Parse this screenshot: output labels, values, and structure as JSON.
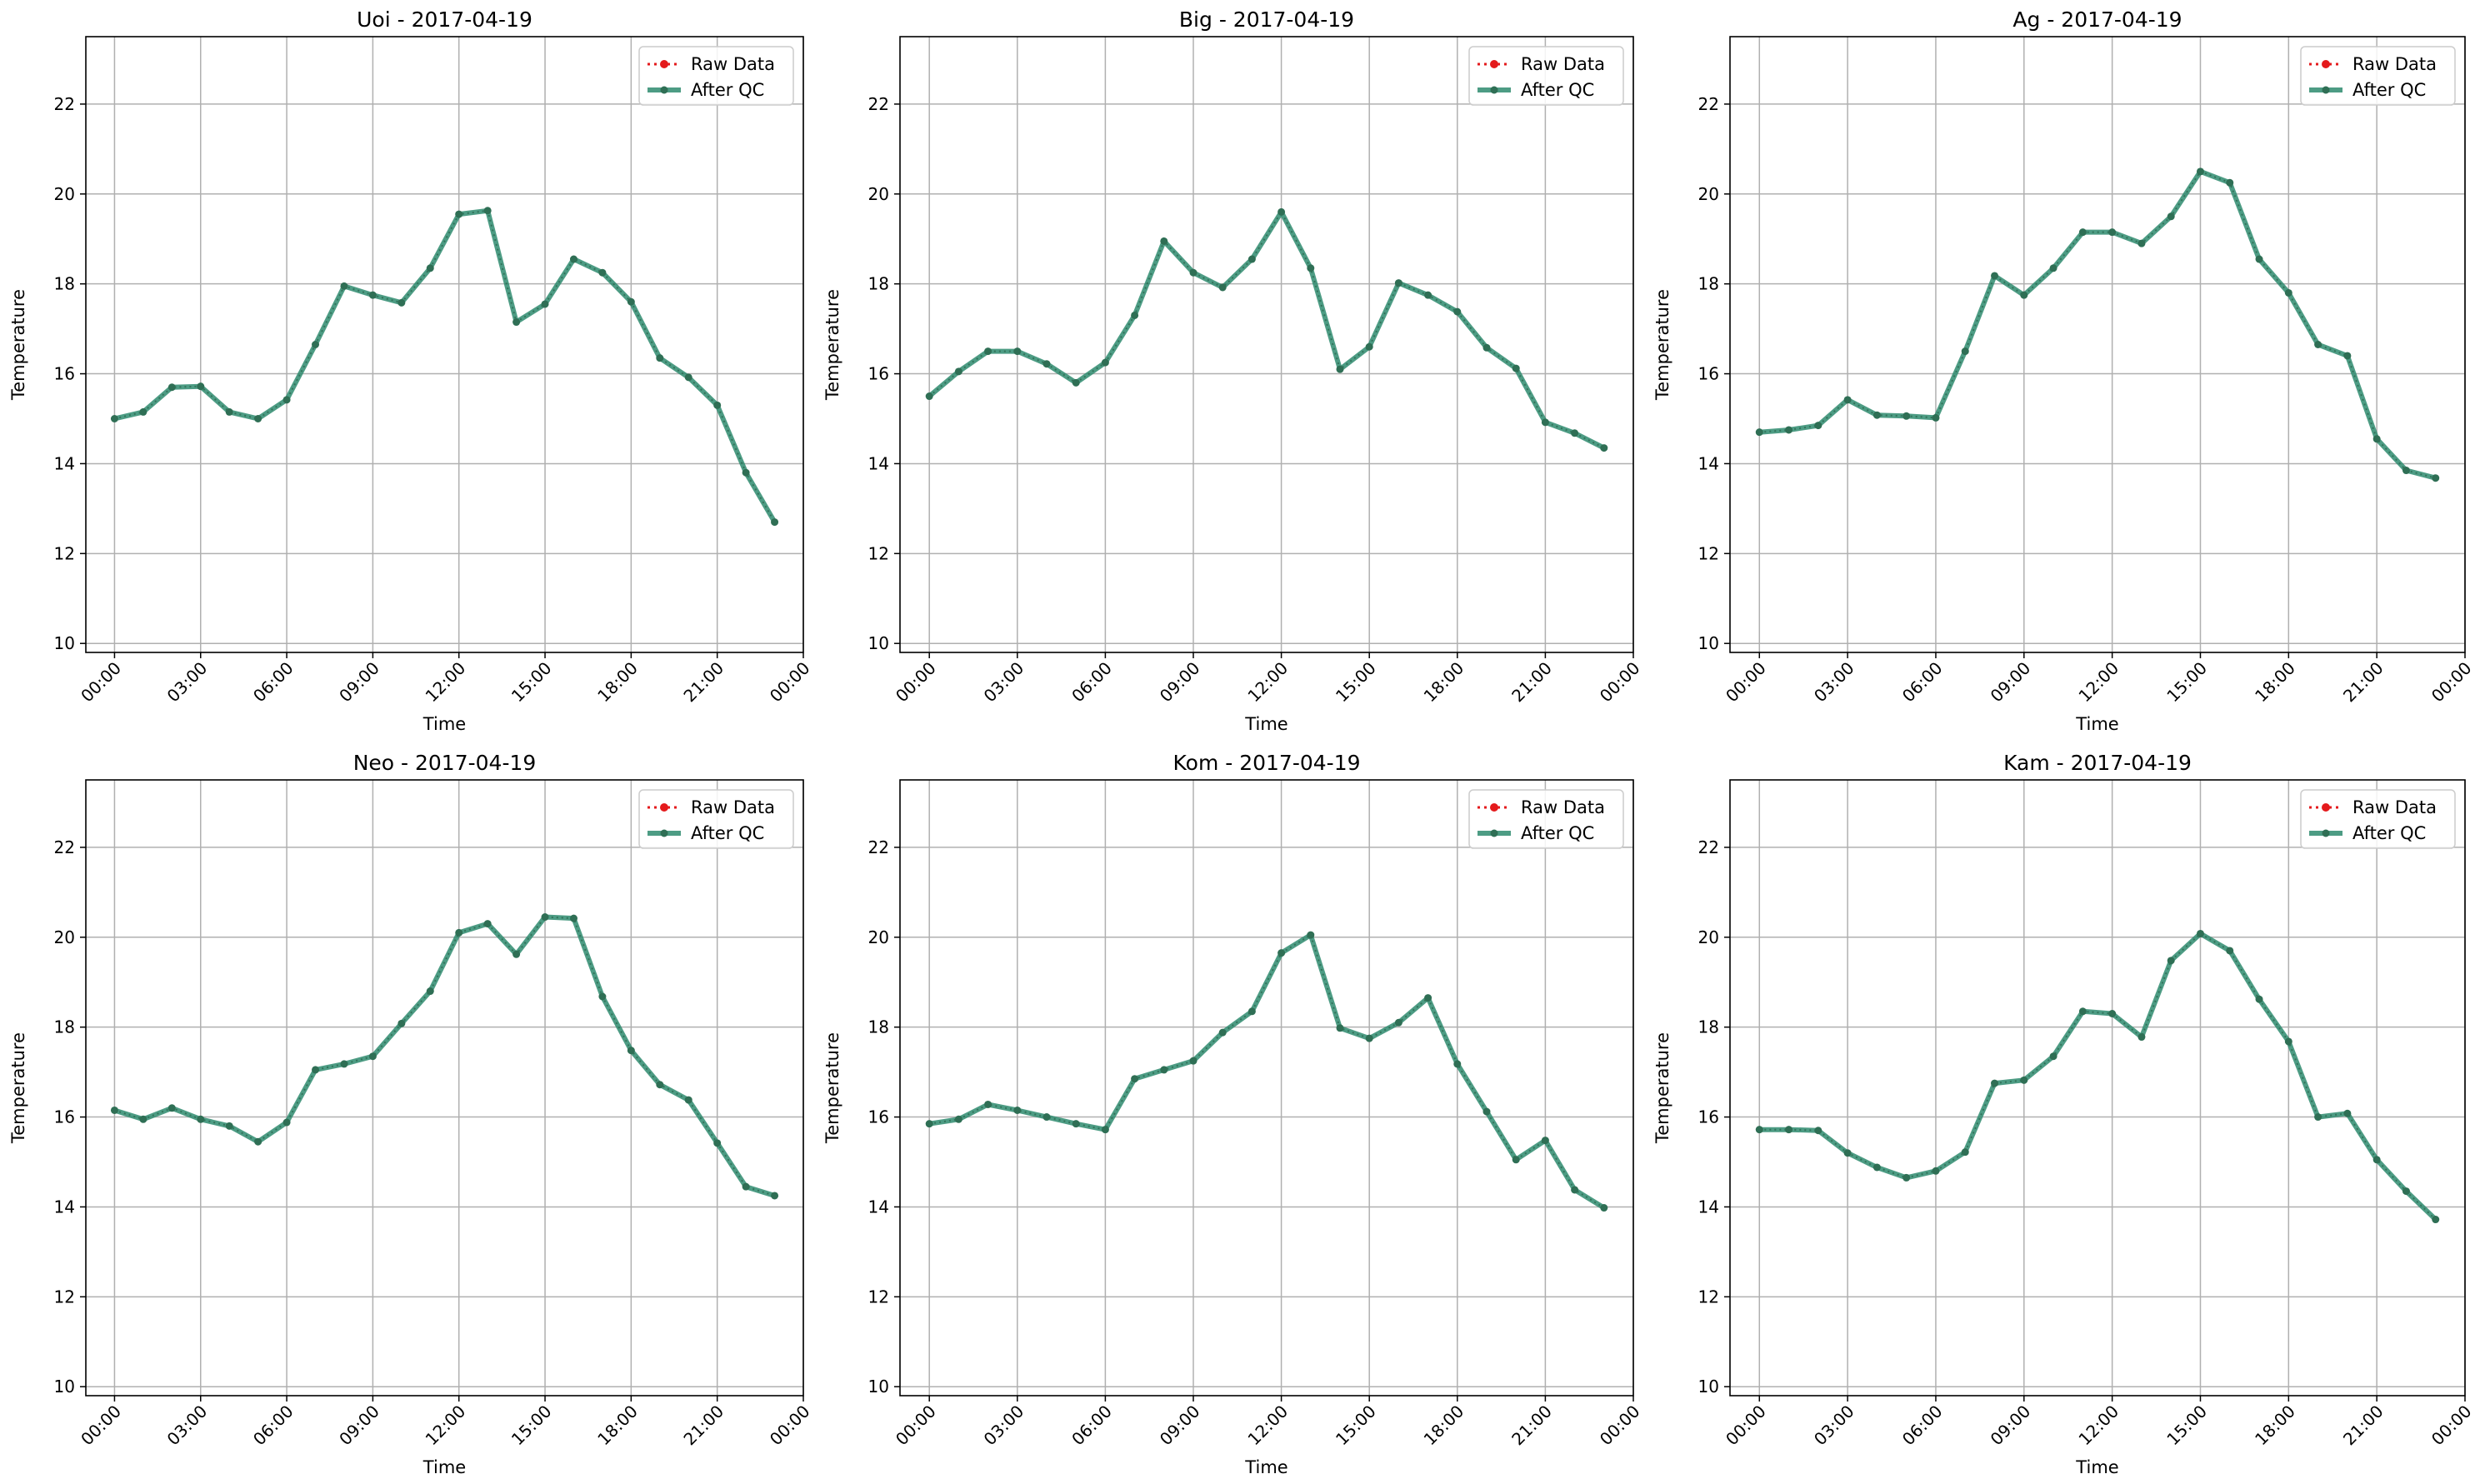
{
  "figure": {
    "legend_placement": "upper-right",
    "grid": true,
    "colors": {
      "raw": "#e41a1c",
      "qc": "#2e8b6e",
      "qc_marker": "#2f6f55",
      "grid": "#b0b0b0"
    }
  },
  "chart_data": [
    {
      "type": "line",
      "title": "Uoi - 2017-04-19",
      "xlabel": "Time",
      "ylabel": "Temperature",
      "ylim": [
        9.8,
        23.5
      ],
      "xlim": [
        -1.0,
        24.0
      ],
      "yticks": [
        10,
        12,
        14,
        16,
        18,
        20,
        22
      ],
      "xticks": [
        "00:00",
        "03:00",
        "06:00",
        "09:00",
        "12:00",
        "15:00",
        "18:00",
        "21:00",
        "00:00"
      ],
      "x_hours": [
        0,
        1,
        2,
        3,
        4,
        5,
        6,
        7,
        8,
        9,
        10,
        11,
        12,
        13,
        14,
        15,
        16,
        17,
        18,
        19,
        20,
        21,
        22,
        23
      ],
      "series": [
        {
          "name": "Raw Data",
          "style": "dotted",
          "values": [
            15.0,
            15.15,
            15.7,
            15.72,
            15.15,
            15.0,
            15.42,
            16.65,
            17.95,
            17.75,
            17.58,
            18.35,
            19.55,
            19.63,
            17.15,
            17.55,
            18.55,
            18.25,
            17.6,
            16.35,
            15.92,
            15.3,
            13.8,
            12.7
          ]
        },
        {
          "name": "After QC",
          "style": "solid",
          "values": [
            15.0,
            15.15,
            15.7,
            15.72,
            15.15,
            15.0,
            15.42,
            16.65,
            17.95,
            17.75,
            17.58,
            18.35,
            19.55,
            19.63,
            17.15,
            17.55,
            18.55,
            18.25,
            17.6,
            16.35,
            15.92,
            15.3,
            13.8,
            12.7
          ]
        }
      ]
    },
    {
      "type": "line",
      "title": "Big - 2017-04-19",
      "xlabel": "Time",
      "ylabel": "Temperature",
      "ylim": [
        9.8,
        23.5
      ],
      "xlim": [
        -1.0,
        24.0
      ],
      "yticks": [
        10,
        12,
        14,
        16,
        18,
        20,
        22
      ],
      "xticks": [
        "00:00",
        "03:00",
        "06:00",
        "09:00",
        "12:00",
        "15:00",
        "18:00",
        "21:00",
        "00:00"
      ],
      "x_hours": [
        0,
        1,
        2,
        3,
        4,
        5,
        6,
        7,
        8,
        9,
        10,
        11,
        12,
        13,
        14,
        15,
        16,
        17,
        18,
        19,
        20,
        21,
        22,
        23
      ],
      "series": [
        {
          "name": "Raw Data",
          "style": "dotted",
          "values": [
            15.5,
            16.05,
            16.5,
            16.5,
            16.22,
            15.8,
            16.25,
            17.3,
            18.95,
            18.25,
            17.92,
            18.55,
            19.6,
            18.35,
            16.1,
            16.6,
            18.02,
            17.75,
            17.38,
            16.58,
            16.12,
            14.92,
            14.68,
            14.35
          ]
        },
        {
          "name": "After QC",
          "style": "solid",
          "values": [
            15.5,
            16.05,
            16.5,
            16.5,
            16.22,
            15.8,
            16.25,
            17.3,
            18.95,
            18.25,
            17.92,
            18.55,
            19.6,
            18.35,
            16.1,
            16.6,
            18.02,
            17.75,
            17.38,
            16.58,
            16.12,
            14.92,
            14.68,
            14.35
          ]
        }
      ]
    },
    {
      "type": "line",
      "title": "Ag - 2017-04-19",
      "xlabel": "Time",
      "ylabel": "Temperature",
      "ylim": [
        9.8,
        23.5
      ],
      "xlim": [
        -1.0,
        24.0
      ],
      "yticks": [
        10,
        12,
        14,
        16,
        18,
        20,
        22
      ],
      "xticks": [
        "00:00",
        "03:00",
        "06:00",
        "09:00",
        "12:00",
        "15:00",
        "18:00",
        "21:00",
        "00:00"
      ],
      "x_hours": [
        0,
        1,
        2,
        3,
        4,
        5,
        6,
        7,
        8,
        9,
        10,
        11,
        12,
        13,
        14,
        15,
        16,
        17,
        18,
        19,
        20,
        21,
        22,
        23
      ],
      "series": [
        {
          "name": "Raw Data",
          "style": "dotted",
          "values": [
            14.7,
            14.75,
            14.85,
            15.42,
            15.08,
            15.06,
            15.02,
            16.5,
            18.18,
            17.75,
            18.35,
            19.15,
            19.15,
            18.9,
            19.5,
            20.5,
            20.25,
            18.55,
            17.8,
            16.65,
            16.4,
            14.55,
            13.85,
            13.68
          ]
        },
        {
          "name": "After QC",
          "style": "solid",
          "values": [
            14.7,
            14.75,
            14.85,
            15.42,
            15.08,
            15.06,
            15.02,
            16.5,
            18.18,
            17.75,
            18.35,
            19.15,
            19.15,
            18.9,
            19.5,
            20.5,
            20.25,
            18.55,
            17.8,
            16.65,
            16.4,
            14.55,
            13.85,
            13.68
          ]
        }
      ]
    },
    {
      "type": "line",
      "title": "Neo - 2017-04-19",
      "xlabel": "Time",
      "ylabel": "Temperature",
      "ylim": [
        9.8,
        23.5
      ],
      "xlim": [
        -1.0,
        24.0
      ],
      "yticks": [
        10,
        12,
        14,
        16,
        18,
        20,
        22
      ],
      "xticks": [
        "00:00",
        "03:00",
        "06:00",
        "09:00",
        "12:00",
        "15:00",
        "18:00",
        "21:00",
        "00:00"
      ],
      "x_hours": [
        0,
        1,
        2,
        3,
        4,
        5,
        6,
        7,
        8,
        9,
        10,
        11,
        12,
        13,
        14,
        15,
        16,
        17,
        18,
        19,
        20,
        21,
        22,
        23
      ],
      "series": [
        {
          "name": "Raw Data",
          "style": "dotted",
          "values": [
            16.15,
            15.95,
            16.2,
            15.95,
            15.8,
            15.45,
            15.88,
            17.05,
            17.18,
            17.35,
            18.08,
            18.8,
            20.1,
            20.3,
            19.62,
            20.45,
            20.42,
            18.68,
            17.48,
            16.72,
            16.38,
            15.42,
            14.45,
            14.25
          ]
        },
        {
          "name": "After QC",
          "style": "solid",
          "values": [
            16.15,
            15.95,
            16.2,
            15.95,
            15.8,
            15.45,
            15.88,
            17.05,
            17.18,
            17.35,
            18.08,
            18.8,
            20.1,
            20.3,
            19.62,
            20.45,
            20.42,
            18.68,
            17.48,
            16.72,
            16.38,
            15.42,
            14.45,
            14.25
          ]
        }
      ]
    },
    {
      "type": "line",
      "title": "Kom - 2017-04-19",
      "xlabel": "Time",
      "ylabel": "Temperature",
      "ylim": [
        9.8,
        23.5
      ],
      "xlim": [
        -1.0,
        24.0
      ],
      "yticks": [
        10,
        12,
        14,
        16,
        18,
        20,
        22
      ],
      "xticks": [
        "00:00",
        "03:00",
        "06:00",
        "09:00",
        "12:00",
        "15:00",
        "18:00",
        "21:00",
        "00:00"
      ],
      "x_hours": [
        0,
        1,
        2,
        3,
        4,
        5,
        6,
        7,
        8,
        9,
        10,
        11,
        12,
        13,
        14,
        15,
        16,
        17,
        18,
        19,
        20,
        21,
        22,
        23
      ],
      "series": [
        {
          "name": "Raw Data",
          "style": "dotted",
          "values": [
            15.85,
            15.95,
            16.28,
            16.15,
            16.0,
            15.85,
            15.72,
            16.85,
            17.05,
            17.25,
            17.88,
            18.35,
            19.65,
            20.05,
            17.98,
            17.75,
            18.1,
            18.65,
            17.18,
            16.12,
            15.05,
            15.48,
            14.38,
            13.98
          ]
        },
        {
          "name": "After QC",
          "style": "solid",
          "values": [
            15.85,
            15.95,
            16.28,
            16.15,
            16.0,
            15.85,
            15.72,
            16.85,
            17.05,
            17.25,
            17.88,
            18.35,
            19.65,
            20.05,
            17.98,
            17.75,
            18.1,
            18.65,
            17.18,
            16.12,
            15.05,
            15.48,
            14.38,
            13.98
          ]
        }
      ]
    },
    {
      "type": "line",
      "title": "Kam - 2017-04-19",
      "xlabel": "Time",
      "ylabel": "Temperature",
      "ylim": [
        9.8,
        23.5
      ],
      "xlim": [
        -1.0,
        24.0
      ],
      "yticks": [
        10,
        12,
        14,
        16,
        18,
        20,
        22
      ],
      "xticks": [
        "00:00",
        "03:00",
        "06:00",
        "09:00",
        "12:00",
        "15:00",
        "18:00",
        "21:00",
        "00:00"
      ],
      "x_hours": [
        0,
        1,
        2,
        3,
        4,
        5,
        6,
        7,
        8,
        9,
        10,
        11,
        12,
        13,
        14,
        15,
        16,
        17,
        18,
        19,
        20,
        21,
        22,
        23
      ],
      "series": [
        {
          "name": "Raw Data",
          "style": "dotted",
          "values": [
            15.72,
            15.72,
            15.7,
            15.2,
            14.88,
            14.65,
            14.8,
            15.22,
            16.75,
            16.82,
            17.35,
            18.35,
            18.3,
            17.78,
            19.48,
            20.08,
            19.7,
            18.62,
            17.68,
            16.0,
            16.08,
            15.05,
            14.35,
            13.72
          ]
        },
        {
          "name": "After QC",
          "style": "solid",
          "values": [
            15.72,
            15.72,
            15.7,
            15.2,
            14.88,
            14.65,
            14.8,
            15.22,
            16.75,
            16.82,
            17.35,
            18.35,
            18.3,
            17.78,
            19.48,
            20.08,
            19.7,
            18.62,
            17.68,
            16.0,
            16.08,
            15.05,
            14.35,
            13.72
          ]
        }
      ]
    }
  ]
}
